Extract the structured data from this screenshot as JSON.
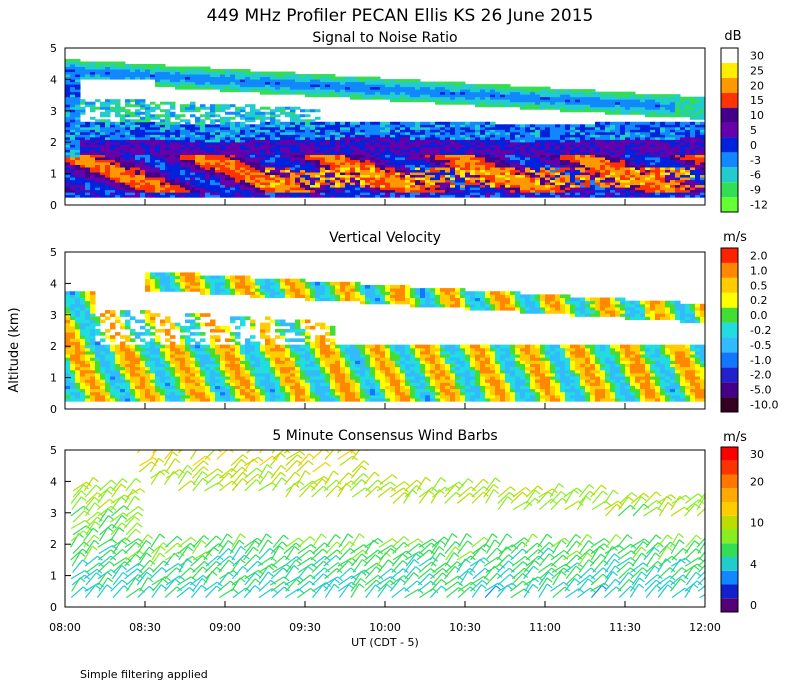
{
  "chart_data": {
    "type": "heatmap",
    "title": "449 MHz Profiler PECAN Ellis KS 26 June 2015",
    "xlabel": "UT  (CDT - 5)",
    "ylabel": "Altitude (km)",
    "x_ticks": [
      "08:00",
      "08:30",
      "09:00",
      "09:30",
      "10:00",
      "10:30",
      "11:00",
      "11:30",
      "12:00"
    ],
    "x_range_hours": [
      8,
      12
    ],
    "footnote": "Simple filtering applied",
    "panels": [
      {
        "name": "snr",
        "title": "Signal to Noise Ratio",
        "unit": "dB",
        "ylim": [
          0,
          5
        ],
        "y_ticks": [
          "0",
          "1",
          "2",
          "3",
          "4",
          "5"
        ],
        "colorbar_labels": [
          "30",
          "25",
          "20",
          "15",
          "10",
          "5",
          "0",
          "-3",
          "-6",
          "-9",
          "-12"
        ],
        "colors": [
          "#66ff33",
          "#33dd55",
          "#22cccc",
          "#1188ff",
          "#0022dd",
          "#6600aa",
          "#440088",
          "#ff3300",
          "#ff9900",
          "#ffee00",
          "#ffffff"
        ]
      },
      {
        "name": "vertical-velocity",
        "title": "Vertical Velocity",
        "unit": "m/s",
        "ylim": [
          0,
          5
        ],
        "y_ticks": [
          "0",
          "1",
          "2",
          "3",
          "4",
          "5"
        ],
        "colorbar_labels": [
          "2.0",
          "1.0",
          "0.5",
          "0.2",
          "0.0",
          "-0.2",
          "-0.5",
          "-1.0",
          "-2.0",
          "-5.0",
          "-10.0"
        ],
        "colors": [
          "#330022",
          "#440088",
          "#2222cc",
          "#1177ff",
          "#33bbff",
          "#22dddd",
          "#44dd33",
          "#ffff00",
          "#ffcc00",
          "#ff8800",
          "#ff2200"
        ]
      },
      {
        "name": "wind-barbs",
        "title": "5 Minute Consensus Wind Barbs",
        "unit": "m/s",
        "ylim": [
          0,
          5
        ],
        "y_ticks": [
          "0",
          "1",
          "2",
          "3",
          "4",
          "5"
        ],
        "colorbar_labels": [
          "0",
          "4",
          "10",
          "20",
          "30"
        ],
        "colorbar_label_positions": [
          0.5,
          3.5,
          6.5,
          9.5,
          11.5
        ],
        "colors": [
          "#550077",
          "#1122cc",
          "#1188ff",
          "#22cccc",
          "#33dd55",
          "#88ee22",
          "#bbdd00",
          "#ffcc00",
          "#ffaa00",
          "#ff7700",
          "#ff3300",
          "#ff0000"
        ]
      }
    ]
  }
}
